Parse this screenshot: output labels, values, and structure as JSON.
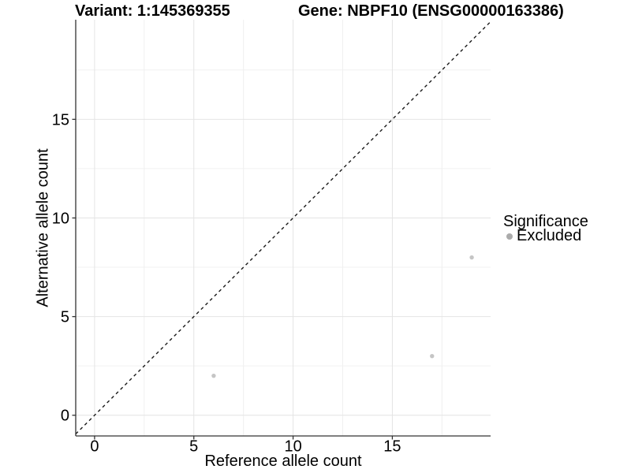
{
  "chart_data": {
    "type": "scatter",
    "title_variant": "Variant: 1:145369355",
    "title_gene": "Gene: NBPF10 (ENSG00000163386)",
    "xlabel": "Reference allele count",
    "ylabel": "Alternative allele count",
    "xlim": [
      -0.95,
      19.95
    ],
    "ylim": [
      -1.05,
      20.05
    ],
    "x_ticks": [
      0,
      5,
      10,
      15
    ],
    "y_ticks": [
      0,
      5,
      10,
      15
    ],
    "minor_gridlines_x": [
      2.5,
      7.5,
      12.5,
      17.5
    ],
    "minor_gridlines_y": [
      2.5,
      7.5,
      12.5,
      17.5
    ],
    "grid": "major and minor light grey gridlines on white panel",
    "identity_line": {
      "style": "dashed",
      "equation": "y = x",
      "color": "#1a1a1a"
    },
    "series": [
      {
        "name": "Excluded",
        "color": "#c5c5c5",
        "points": [
          {
            "x": 6,
            "y": 2
          },
          {
            "x": 17,
            "y": 3
          },
          {
            "x": 19,
            "y": 8
          }
        ]
      }
    ],
    "legend": {
      "title": "Significance",
      "position": "right",
      "items": [
        {
          "label": "Excluded",
          "key_color": "#ababab"
        }
      ]
    },
    "colors": {
      "axis": "#333333",
      "grid_major": "#e4e4e4",
      "grid_minor": "#f0f0f0",
      "tick_text": "#000000"
    }
  }
}
